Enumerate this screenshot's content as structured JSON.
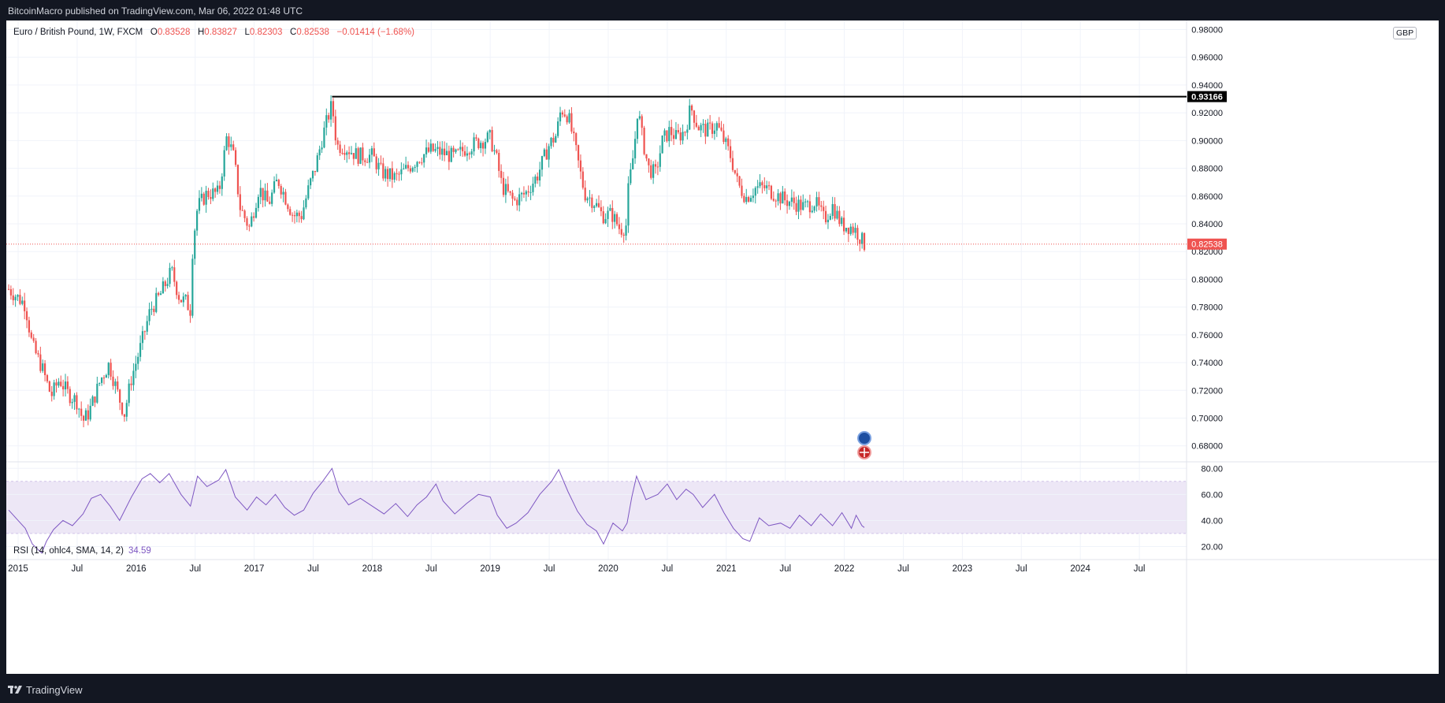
{
  "header": {
    "publisher": "BitcoinMacro published on TradingView.com, Mar 06, 2022 01:48 UTC"
  },
  "symbol": {
    "name": "Euro / British Pound, 1W, FXCM",
    "open_label": "O",
    "open": "0.83528",
    "high_label": "H",
    "high": "0.83827",
    "low_label": "L",
    "low": "0.82303",
    "close_label": "C",
    "close": "0.82538",
    "change": "−0.01414 (−1.68%)",
    "currency": "GBP"
  },
  "rsi_legend": {
    "label": "RSI (14, ohlc4, SMA, 14, 2)",
    "value": "34.59"
  },
  "footer": {
    "brand": "TradingView"
  },
  "colors": {
    "up": "#26a69a",
    "down": "#ef5350",
    "rsi_line": "#7e57c2",
    "rsi_band": "#ede7f6",
    "resistance": "#000000",
    "price_line": "#ef5350"
  },
  "chart_data": [
    {
      "type": "candlestick",
      "symbol": "EURGBP",
      "timeframe": "1W",
      "price_axis_ticks": [
        "0.68000",
        "0.70000",
        "0.72000",
        "0.74000",
        "0.76000",
        "0.78000",
        "0.80000",
        "0.82000",
        "0.84000",
        "0.86000",
        "0.88000",
        "0.90000",
        "0.92000",
        "0.94000",
        "0.96000",
        "0.98000"
      ],
      "ylim": [
        0.6685,
        0.9865
      ],
      "time_axis_labels": [
        {
          "label": "2015",
          "x": 2015.0
        },
        {
          "label": "Jul",
          "x": 2015.5
        },
        {
          "label": "2016",
          "x": 2016.0
        },
        {
          "label": "Jul",
          "x": 2016.5
        },
        {
          "label": "2017",
          "x": 2017.0
        },
        {
          "label": "Jul",
          "x": 2017.5
        },
        {
          "label": "2018",
          "x": 2018.0
        },
        {
          "label": "Jul",
          "x": 2018.5
        },
        {
          "label": "2019",
          "x": 2019.0
        },
        {
          "label": "Jul",
          "x": 2019.5
        },
        {
          "label": "2020",
          "x": 2020.0
        },
        {
          "label": "Jul",
          "x": 2020.5
        },
        {
          "label": "2021",
          "x": 2021.0
        },
        {
          "label": "Jul",
          "x": 2021.5
        },
        {
          "label": "2022",
          "x": 2022.0
        },
        {
          "label": "Jul",
          "x": 2022.5
        },
        {
          "label": "2023",
          "x": 2023.0
        },
        {
          "label": "Jul",
          "x": 2023.5
        },
        {
          "label": "2024",
          "x": 2024.0
        },
        {
          "label": "Jul",
          "x": 2024.5
        }
      ],
      "xlim": [
        2014.9,
        2024.9
      ],
      "last_x": 2022.17,
      "close_path": [
        [
          2014.92,
          0.793
        ],
        [
          2015.06,
          0.782
        ],
        [
          2015.12,
          0.752
        ],
        [
          2015.2,
          0.737
        ],
        [
          2015.28,
          0.716
        ],
        [
          2015.35,
          0.728
        ],
        [
          2015.42,
          0.718
        ],
        [
          2015.5,
          0.712
        ],
        [
          2015.55,
          0.698
        ],
        [
          2015.6,
          0.704
        ],
        [
          2015.7,
          0.728
        ],
        [
          2015.77,
          0.739
        ],
        [
          2015.85,
          0.716
        ],
        [
          2015.9,
          0.703
        ],
        [
          2015.96,
          0.729
        ],
        [
          2016.04,
          0.752
        ],
        [
          2016.12,
          0.778
        ],
        [
          2016.2,
          0.788
        ],
        [
          2016.3,
          0.806
        ],
        [
          2016.37,
          0.786
        ],
        [
          2016.42,
          0.784
        ],
        [
          2016.46,
          0.778
        ],
        [
          2016.48,
          0.826
        ],
        [
          2016.52,
          0.852
        ],
        [
          2016.6,
          0.862
        ],
        [
          2016.7,
          0.862
        ],
        [
          2016.77,
          0.904
        ],
        [
          2016.83,
          0.887
        ],
        [
          2016.88,
          0.852
        ],
        [
          2016.96,
          0.837
        ],
        [
          2017.04,
          0.866
        ],
        [
          2017.12,
          0.854
        ],
        [
          2017.2,
          0.872
        ],
        [
          2017.27,
          0.858
        ],
        [
          2017.33,
          0.846
        ],
        [
          2017.4,
          0.846
        ],
        [
          2017.47,
          0.868
        ],
        [
          2017.52,
          0.881
        ],
        [
          2017.58,
          0.903
        ],
        [
          2017.63,
          0.918
        ],
        [
          2017.66,
          0.926
        ],
        [
          2017.7,
          0.896
        ],
        [
          2017.76,
          0.896
        ],
        [
          2017.88,
          0.889
        ],
        [
          2018.0,
          0.889
        ],
        [
          2018.08,
          0.877
        ],
        [
          2018.2,
          0.873
        ],
        [
          2018.3,
          0.88
        ],
        [
          2018.4,
          0.888
        ],
        [
          2018.5,
          0.893
        ],
        [
          2018.6,
          0.891
        ],
        [
          2018.7,
          0.888
        ],
        [
          2018.8,
          0.895
        ],
        [
          2018.9,
          0.899
        ],
        [
          2019.0,
          0.902
        ],
        [
          2019.05,
          0.888
        ],
        [
          2019.1,
          0.867
        ],
        [
          2019.2,
          0.856
        ],
        [
          2019.3,
          0.862
        ],
        [
          2019.4,
          0.875
        ],
        [
          2019.5,
          0.897
        ],
        [
          2019.56,
          0.904
        ],
        [
          2019.6,
          0.923
        ],
        [
          2019.66,
          0.918
        ],
        [
          2019.72,
          0.895
        ],
        [
          2019.76,
          0.878
        ],
        [
          2019.8,
          0.862
        ],
        [
          2019.88,
          0.856
        ],
        [
          2019.95,
          0.846
        ],
        [
          2020.03,
          0.847
        ],
        [
          2020.1,
          0.836
        ],
        [
          2020.15,
          0.838
        ],
        [
          2020.17,
          0.864
        ],
        [
          2020.22,
          0.894
        ],
        [
          2020.25,
          0.924
        ],
        [
          2020.28,
          0.906
        ],
        [
          2020.34,
          0.88
        ],
        [
          2020.4,
          0.876
        ],
        [
          2020.46,
          0.9
        ],
        [
          2020.52,
          0.907
        ],
        [
          2020.58,
          0.902
        ],
        [
          2020.65,
          0.907
        ],
        [
          2020.7,
          0.924
        ],
        [
          2020.76,
          0.91
        ],
        [
          2020.84,
          0.907
        ],
        [
          2020.92,
          0.911
        ],
        [
          2020.98,
          0.9
        ],
        [
          2021.04,
          0.888
        ],
        [
          2021.1,
          0.868
        ],
        [
          2021.17,
          0.859
        ],
        [
          2021.25,
          0.866
        ],
        [
          2021.33,
          0.866
        ],
        [
          2021.42,
          0.861
        ],
        [
          2021.5,
          0.857
        ],
        [
          2021.58,
          0.855
        ],
        [
          2021.66,
          0.852
        ],
        [
          2021.75,
          0.856
        ],
        [
          2021.83,
          0.843
        ],
        [
          2021.9,
          0.853
        ],
        [
          2021.98,
          0.839
        ],
        [
          2022.05,
          0.838
        ],
        [
          2022.1,
          0.835
        ],
        [
          2022.17,
          0.825
        ]
      ],
      "resistance_level": 0.93166,
      "resistance_label": "0.93166",
      "resistance_start_x": 2017.66,
      "last_price": 0.82538,
      "last_price_label": "0.82538"
    },
    {
      "type": "line",
      "name": "RSI (14, ohlc4, SMA, 14, 2)",
      "yticks": [
        "20.00",
        "40.00",
        "60.00",
        "80.00"
      ],
      "ylim": [
        10,
        85
      ],
      "band": [
        30,
        70
      ],
      "points": [
        [
          2014.92,
          48
        ],
        [
          2015.0,
          40
        ],
        [
          2015.06,
          34
        ],
        [
          2015.12,
          22
        ],
        [
          2015.2,
          15
        ],
        [
          2015.24,
          24
        ],
        [
          2015.3,
          33
        ],
        [
          2015.38,
          40
        ],
        [
          2015.46,
          36
        ],
        [
          2015.55,
          45
        ],
        [
          2015.62,
          57
        ],
        [
          2015.7,
          60
        ],
        [
          2015.78,
          51
        ],
        [
          2015.86,
          40
        ],
        [
          2015.96,
          58
        ],
        [
          2016.05,
          72
        ],
        [
          2016.12,
          76
        ],
        [
          2016.2,
          69
        ],
        [
          2016.28,
          76
        ],
        [
          2016.38,
          60
        ],
        [
          2016.46,
          51
        ],
        [
          2016.52,
          74
        ],
        [
          2016.6,
          66
        ],
        [
          2016.7,
          71
        ],
        [
          2016.76,
          79
        ],
        [
          2016.84,
          58
        ],
        [
          2016.94,
          48
        ],
        [
          2017.02,
          58
        ],
        [
          2017.1,
          52
        ],
        [
          2017.18,
          60
        ],
        [
          2017.26,
          50
        ],
        [
          2017.34,
          44
        ],
        [
          2017.42,
          48
        ],
        [
          2017.5,
          61
        ],
        [
          2017.58,
          70
        ],
        [
          2017.66,
          80
        ],
        [
          2017.72,
          62
        ],
        [
          2017.8,
          52
        ],
        [
          2017.9,
          57
        ],
        [
          2018.0,
          51
        ],
        [
          2018.1,
          45
        ],
        [
          2018.2,
          53
        ],
        [
          2018.3,
          43
        ],
        [
          2018.38,
          52
        ],
        [
          2018.46,
          58
        ],
        [
          2018.54,
          68
        ],
        [
          2018.6,
          55
        ],
        [
          2018.7,
          45
        ],
        [
          2018.8,
          53
        ],
        [
          2018.9,
          60
        ],
        [
          2019.0,
          58
        ],
        [
          2019.06,
          44
        ],
        [
          2019.14,
          34
        ],
        [
          2019.22,
          38
        ],
        [
          2019.32,
          46
        ],
        [
          2019.42,
          60
        ],
        [
          2019.52,
          70
        ],
        [
          2019.58,
          79
        ],
        [
          2019.66,
          62
        ],
        [
          2019.74,
          47
        ],
        [
          2019.82,
          37
        ],
        [
          2019.9,
          32
        ],
        [
          2019.96,
          22
        ],
        [
          2020.04,
          38
        ],
        [
          2020.12,
          32
        ],
        [
          2020.16,
          38
        ],
        [
          2020.2,
          58
        ],
        [
          2020.24,
          74
        ],
        [
          2020.32,
          56
        ],
        [
          2020.42,
          60
        ],
        [
          2020.5,
          68
        ],
        [
          2020.58,
          56
        ],
        [
          2020.66,
          64
        ],
        [
          2020.72,
          60
        ],
        [
          2020.8,
          50
        ],
        [
          2020.9,
          60
        ],
        [
          2020.98,
          46
        ],
        [
          2021.06,
          34
        ],
        [
          2021.14,
          26
        ],
        [
          2021.2,
          24
        ],
        [
          2021.28,
          42
        ],
        [
          2021.36,
          36
        ],
        [
          2021.46,
          38
        ],
        [
          2021.54,
          34
        ],
        [
          2021.62,
          44
        ],
        [
          2021.72,
          36
        ],
        [
          2021.8,
          45
        ],
        [
          2021.9,
          36
        ],
        [
          2021.98,
          46
        ],
        [
          2022.06,
          34
        ],
        [
          2022.1,
          44
        ],
        [
          2022.15,
          36
        ],
        [
          2022.17,
          34.6
        ]
      ],
      "last_value": 34.59
    }
  ]
}
